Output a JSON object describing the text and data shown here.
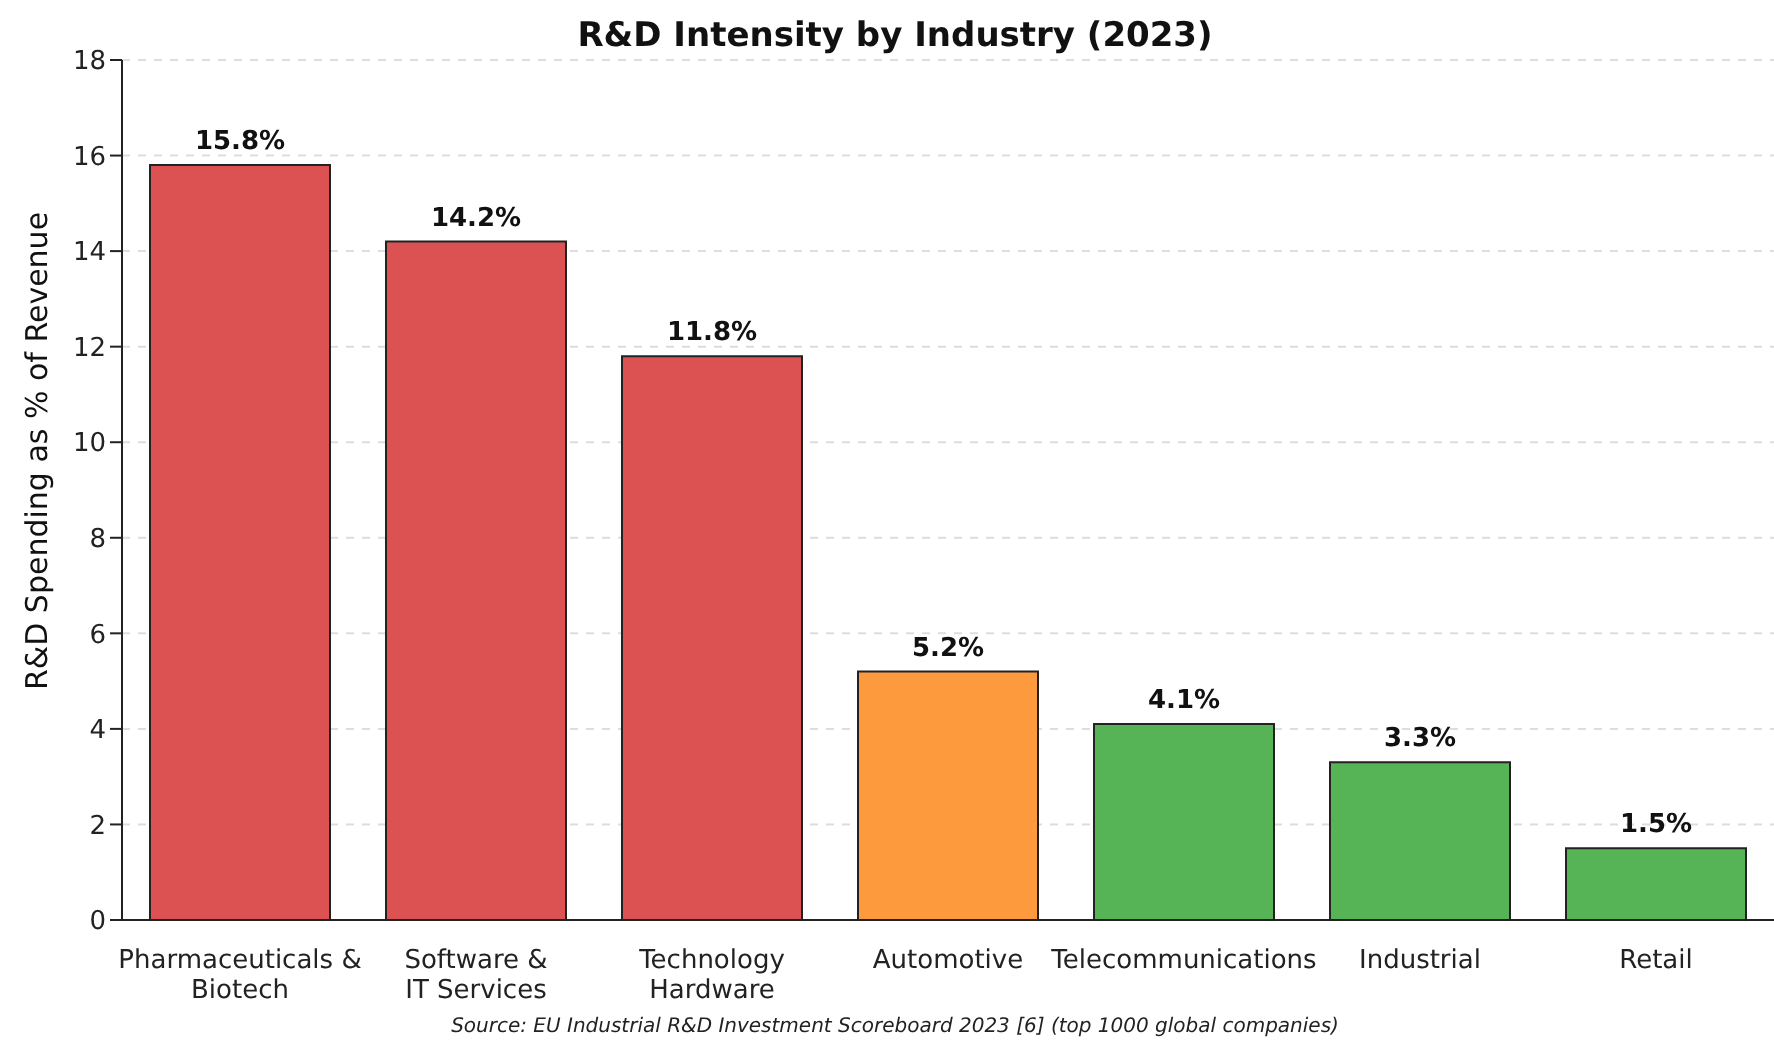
{
  "chart_data": {
    "type": "bar",
    "title": "R&D Intensity by Industry (2023)",
    "ylabel": "R&D Spending as % of Revenue",
    "categories": [
      "Pharmaceuticals &\nBiotech",
      "Software &\nIT Services",
      "Technology\nHardware",
      "Automotive",
      "Telecommunications",
      "Industrial",
      "Retail"
    ],
    "values": [
      15.8,
      14.2,
      11.8,
      5.2,
      4.1,
      3.3,
      1.5
    ],
    "colors": [
      "#dc5252",
      "#dc5252",
      "#dc5252",
      "#fe9a3e",
      "#56b356",
      "#56b356",
      "#56b356"
    ],
    "value_labels": [
      "15.8%",
      "14.2%",
      "11.8%",
      "5.2%",
      "4.1%",
      "3.3%",
      "1.5%"
    ],
    "ylim": [
      0,
      18
    ],
    "yticks": [
      0,
      2,
      4,
      6,
      8,
      10,
      12,
      14,
      16,
      18
    ],
    "grid": "y",
    "annotations": [
      "Source: EU Industrial R&D Investment Scoreboard 2023 [6] (top 1000 global companies)"
    ]
  }
}
